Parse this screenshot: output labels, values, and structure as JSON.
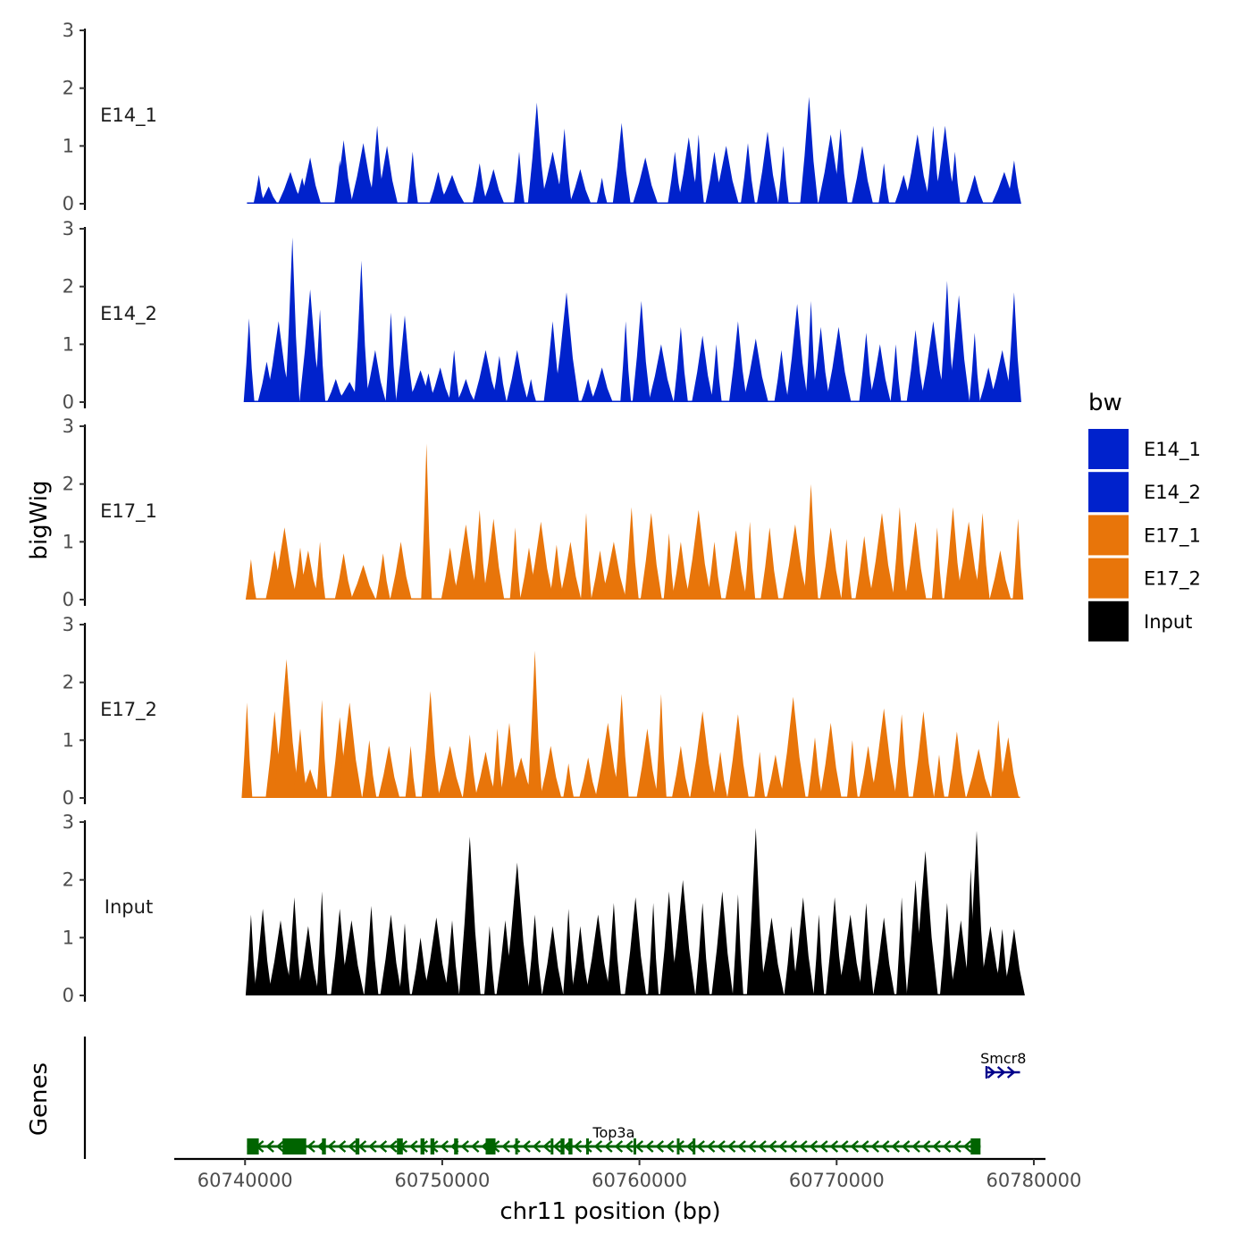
{
  "chart_data": {
    "type": "area",
    "x_axis": {
      "title": "chr11 position (bp)",
      "chrom": "chr11",
      "range": [
        60736500,
        60780500
      ],
      "ticks": [
        60740000,
        60750000,
        60760000,
        60770000,
        60780000
      ],
      "tick_labels": [
        "60740000",
        "60750000",
        "60760000",
        "60770000",
        "60780000"
      ],
      "data_start": 60740100,
      "data_end": 60779300
    },
    "y_axis": {
      "title": "bigWig",
      "range": [
        0,
        3
      ],
      "ticks": [
        0,
        1,
        2,
        3
      ],
      "tick_labels": [
        "0",
        "1",
        "2",
        "3"
      ]
    },
    "tracks": [
      {
        "name": "E14_1",
        "label": "E14_1",
        "color": "#0022CC",
        "peaks": [
          [
            60740700,
            0.5
          ],
          [
            60741200,
            0.3
          ],
          [
            60742300,
            0.55
          ],
          [
            60742900,
            0.45
          ],
          [
            60743300,
            0.8
          ],
          [
            60744800,
            0.75
          ],
          [
            60745000,
            1.1
          ],
          [
            60746000,
            1.05
          ],
          [
            60746700,
            1.35
          ],
          [
            60747200,
            1.0
          ],
          [
            60748500,
            0.9
          ],
          [
            60749800,
            0.55
          ],
          [
            60750500,
            0.5
          ],
          [
            60751900,
            0.7
          ],
          [
            60752600,
            0.6
          ],
          [
            60753900,
            0.9
          ],
          [
            60754800,
            1.75
          ],
          [
            60755600,
            0.9
          ],
          [
            60756200,
            1.3
          ],
          [
            60757000,
            0.6
          ],
          [
            60758100,
            0.45
          ],
          [
            60759100,
            1.4
          ],
          [
            60760300,
            0.8
          ],
          [
            60761800,
            0.9
          ],
          [
            60762500,
            1.15
          ],
          [
            60763000,
            1.2
          ],
          [
            60763800,
            0.9
          ],
          [
            60764400,
            1.0
          ],
          [
            60765500,
            1.05
          ],
          [
            60766500,
            1.25
          ],
          [
            60767300,
            1.0
          ],
          [
            60768600,
            1.85
          ],
          [
            60769700,
            1.2
          ],
          [
            60770200,
            1.3
          ],
          [
            60771300,
            1.0
          ],
          [
            60772400,
            0.7
          ],
          [
            60773400,
            0.5
          ],
          [
            60774100,
            1.2
          ],
          [
            60774900,
            1.35
          ],
          [
            60775500,
            1.35
          ],
          [
            60776000,
            0.9
          ],
          [
            60777000,
            0.5
          ],
          [
            60778500,
            0.55
          ],
          [
            60779000,
            0.75
          ]
        ]
      },
      {
        "name": "E14_2",
        "label": "E14_2",
        "color": "#0022CC",
        "peaks": [
          [
            60740200,
            1.45
          ],
          [
            60741100,
            0.7
          ],
          [
            60741700,
            1.4
          ],
          [
            60742400,
            2.85
          ],
          [
            60743300,
            1.95
          ],
          [
            60743800,
            1.6
          ],
          [
            60744600,
            0.4
          ],
          [
            60745300,
            0.35
          ],
          [
            60745900,
            2.45
          ],
          [
            60746600,
            0.9
          ],
          [
            60747400,
            1.55
          ],
          [
            60748100,
            1.5
          ],
          [
            60748900,
            0.55
          ],
          [
            60749300,
            0.5
          ],
          [
            60749900,
            0.6
          ],
          [
            60750600,
            0.9
          ],
          [
            60751200,
            0.4
          ],
          [
            60752200,
            0.9
          ],
          [
            60752900,
            0.8
          ],
          [
            60753800,
            0.9
          ],
          [
            60754500,
            0.4
          ],
          [
            60755600,
            1.4
          ],
          [
            60756300,
            1.9
          ],
          [
            60757400,
            0.4
          ],
          [
            60758100,
            0.6
          ],
          [
            60759300,
            1.4
          ],
          [
            60760100,
            1.75
          ],
          [
            60761100,
            1.0
          ],
          [
            60762100,
            1.3
          ],
          [
            60763200,
            1.15
          ],
          [
            60763900,
            1.0
          ],
          [
            60765000,
            1.4
          ],
          [
            60765900,
            1.1
          ],
          [
            60767200,
            0.9
          ],
          [
            60768000,
            1.7
          ],
          [
            60768700,
            1.75
          ],
          [
            60769200,
            1.3
          ],
          [
            60770100,
            1.3
          ],
          [
            60771500,
            1.2
          ],
          [
            60772200,
            1.0
          ],
          [
            60773000,
            1.0
          ],
          [
            60774000,
            1.25
          ],
          [
            60774900,
            1.4
          ],
          [
            60775600,
            2.1
          ],
          [
            60776200,
            1.85
          ],
          [
            60777000,
            1.2
          ],
          [
            60777700,
            0.6
          ],
          [
            60778400,
            0.9
          ],
          [
            60779000,
            1.9
          ]
        ]
      },
      {
        "name": "E17_1",
        "label": "E17_1",
        "color": "#E8750A",
        "peaks": [
          [
            60740300,
            0.7
          ],
          [
            60741500,
            0.85
          ],
          [
            60742000,
            1.25
          ],
          [
            60742800,
            0.9
          ],
          [
            60743200,
            0.85
          ],
          [
            60743800,
            1.0
          ],
          [
            60745000,
            0.8
          ],
          [
            60746000,
            0.6
          ],
          [
            60747000,
            0.8
          ],
          [
            60747900,
            1.0
          ],
          [
            60749200,
            2.7
          ],
          [
            60750400,
            0.9
          ],
          [
            60751200,
            1.3
          ],
          [
            60751900,
            1.55
          ],
          [
            60752600,
            1.4
          ],
          [
            60753700,
            1.25
          ],
          [
            60754400,
            0.9
          ],
          [
            60755000,
            1.35
          ],
          [
            60755800,
            0.95
          ],
          [
            60756500,
            1.0
          ],
          [
            60757300,
            1.5
          ],
          [
            60758000,
            0.85
          ],
          [
            60758700,
            1.0
          ],
          [
            60759600,
            1.6
          ],
          [
            60760600,
            1.5
          ],
          [
            60761500,
            1.15
          ],
          [
            60762100,
            1.0
          ],
          [
            60763000,
            1.55
          ],
          [
            60763800,
            1.0
          ],
          [
            60764900,
            1.2
          ],
          [
            60765600,
            1.35
          ],
          [
            60766600,
            1.25
          ],
          [
            60767900,
            1.3
          ],
          [
            60768700,
            2.0
          ],
          [
            60769700,
            1.25
          ],
          [
            60770500,
            1.05
          ],
          [
            60771400,
            1.1
          ],
          [
            60772300,
            1.5
          ],
          [
            60773200,
            1.6
          ],
          [
            60774000,
            1.35
          ],
          [
            60775100,
            1.25
          ],
          [
            60775900,
            1.6
          ],
          [
            60776700,
            1.35
          ],
          [
            60777400,
            1.5
          ],
          [
            60778300,
            0.85
          ],
          [
            60779200,
            1.4
          ]
        ]
      },
      {
        "name": "E17_2",
        "label": "E17_2",
        "color": "#E8750A",
        "peaks": [
          [
            60740100,
            1.65
          ],
          [
            60741500,
            1.5
          ],
          [
            60742100,
            2.4
          ],
          [
            60742800,
            1.2
          ],
          [
            60743300,
            0.5
          ],
          [
            60743900,
            1.7
          ],
          [
            60744800,
            1.4
          ],
          [
            60745300,
            1.65
          ],
          [
            60746300,
            1.0
          ],
          [
            60747300,
            0.9
          ],
          [
            60748400,
            0.9
          ],
          [
            60749400,
            1.85
          ],
          [
            60750400,
            0.9
          ],
          [
            60751400,
            1.1
          ],
          [
            60752200,
            0.8
          ],
          [
            60752800,
            1.2
          ],
          [
            60753400,
            1.3
          ],
          [
            60754000,
            0.7
          ],
          [
            60754700,
            2.55
          ],
          [
            60755500,
            0.9
          ],
          [
            60756400,
            0.6
          ],
          [
            60757400,
            0.7
          ],
          [
            60758400,
            1.3
          ],
          [
            60759100,
            1.8
          ],
          [
            60760400,
            1.2
          ],
          [
            60761100,
            1.8
          ],
          [
            60762100,
            0.9
          ],
          [
            60763200,
            1.5
          ],
          [
            60764100,
            0.8
          ],
          [
            60765000,
            1.45
          ],
          [
            60766100,
            0.8
          ],
          [
            60766900,
            0.75
          ],
          [
            60767800,
            1.75
          ],
          [
            60768900,
            1.05
          ],
          [
            60769700,
            1.3
          ],
          [
            60770800,
            1.0
          ],
          [
            60771600,
            0.9
          ],
          [
            60772400,
            1.55
          ],
          [
            60773300,
            1.45
          ],
          [
            60774400,
            1.5
          ],
          [
            60775200,
            0.75
          ],
          [
            60776100,
            1.15
          ],
          [
            60777200,
            0.85
          ],
          [
            60778200,
            1.35
          ],
          [
            60778700,
            1.05
          ]
        ]
      },
      {
        "name": "Input",
        "label": "Input",
        "color": "#000000",
        "peaks": [
          [
            60740300,
            1.4
          ],
          [
            60740900,
            1.5
          ],
          [
            60741800,
            1.3
          ],
          [
            60742500,
            1.7
          ],
          [
            60743200,
            1.2
          ],
          [
            60743900,
            1.8
          ],
          [
            60744800,
            1.5
          ],
          [
            60745400,
            1.3
          ],
          [
            60746400,
            1.55
          ],
          [
            60747400,
            1.4
          ],
          [
            60748100,
            1.25
          ],
          [
            60748900,
            1.0
          ],
          [
            60749700,
            1.35
          ],
          [
            60750500,
            1.3
          ],
          [
            60751400,
            2.75
          ],
          [
            60752400,
            1.2
          ],
          [
            60753200,
            1.3
          ],
          [
            60753800,
            2.3
          ],
          [
            60754700,
            1.4
          ],
          [
            60755600,
            1.2
          ],
          [
            60756400,
            1.5
          ],
          [
            60757000,
            1.2
          ],
          [
            60757900,
            1.4
          ],
          [
            60758700,
            1.6
          ],
          [
            60759800,
            1.7
          ],
          [
            60760700,
            1.6
          ],
          [
            60761500,
            1.8
          ],
          [
            60762200,
            2.0
          ],
          [
            60763200,
            1.6
          ],
          [
            60764200,
            1.8
          ],
          [
            60765000,
            1.75
          ],
          [
            60765900,
            2.9
          ],
          [
            60766700,
            1.35
          ],
          [
            60767700,
            1.2
          ],
          [
            60768300,
            1.7
          ],
          [
            60769100,
            1.4
          ],
          [
            60769900,
            1.7
          ],
          [
            60770700,
            1.4
          ],
          [
            60771500,
            1.6
          ],
          [
            60772400,
            1.35
          ],
          [
            60773300,
            1.7
          ],
          [
            60774000,
            2.0
          ],
          [
            60774500,
            2.5
          ],
          [
            60775600,
            1.6
          ],
          [
            60776300,
            1.3
          ],
          [
            60776800,
            2.2
          ],
          [
            60777100,
            2.85
          ],
          [
            60777800,
            1.2
          ],
          [
            60778400,
            1.15
          ],
          [
            60779000,
            1.15
          ]
        ]
      }
    ],
    "legend": {
      "title": "bw",
      "position": "right",
      "entries": [
        {
          "label": "E14_1",
          "color": "#0022CC"
        },
        {
          "label": "E14_2",
          "color": "#0022CC"
        },
        {
          "label": "E17_1",
          "color": "#E8750A"
        },
        {
          "label": "E17_2",
          "color": "#E8750A"
        },
        {
          "label": "Input",
          "color": "#000000"
        }
      ]
    },
    "genes_track": {
      "title": "Genes",
      "genes": [
        {
          "name": "Top3a",
          "strand": "-",
          "start": 60740100,
          "end": 60777300,
          "color": "#006400",
          "exons": [
            [
              60740100,
              60740700
            ],
            [
              60741900,
              60742300
            ],
            [
              60742300,
              60743100
            ],
            [
              60743900,
              60744100
            ],
            [
              60745600,
              60745800
            ],
            [
              60747700,
              60748000
            ],
            [
              60748900,
              60749100
            ],
            [
              60749400,
              60749600
            ],
            [
              60750600,
              60750800
            ],
            [
              60752200,
              60752700
            ],
            [
              60753700,
              60753800
            ],
            [
              60755500,
              60755600
            ],
            [
              60756000,
              60756200
            ],
            [
              60756400,
              60756600
            ],
            [
              60757300,
              60757400
            ],
            [
              60759700,
              60759800
            ],
            [
              60761900,
              60762000
            ],
            [
              60762700,
              60762800
            ],
            [
              60776800,
              60777300
            ]
          ]
        },
        {
          "name": "Smcr8",
          "strand": "+",
          "start": 60777600,
          "end": 60779300,
          "color": "#00008B",
          "exons": []
        }
      ]
    }
  }
}
